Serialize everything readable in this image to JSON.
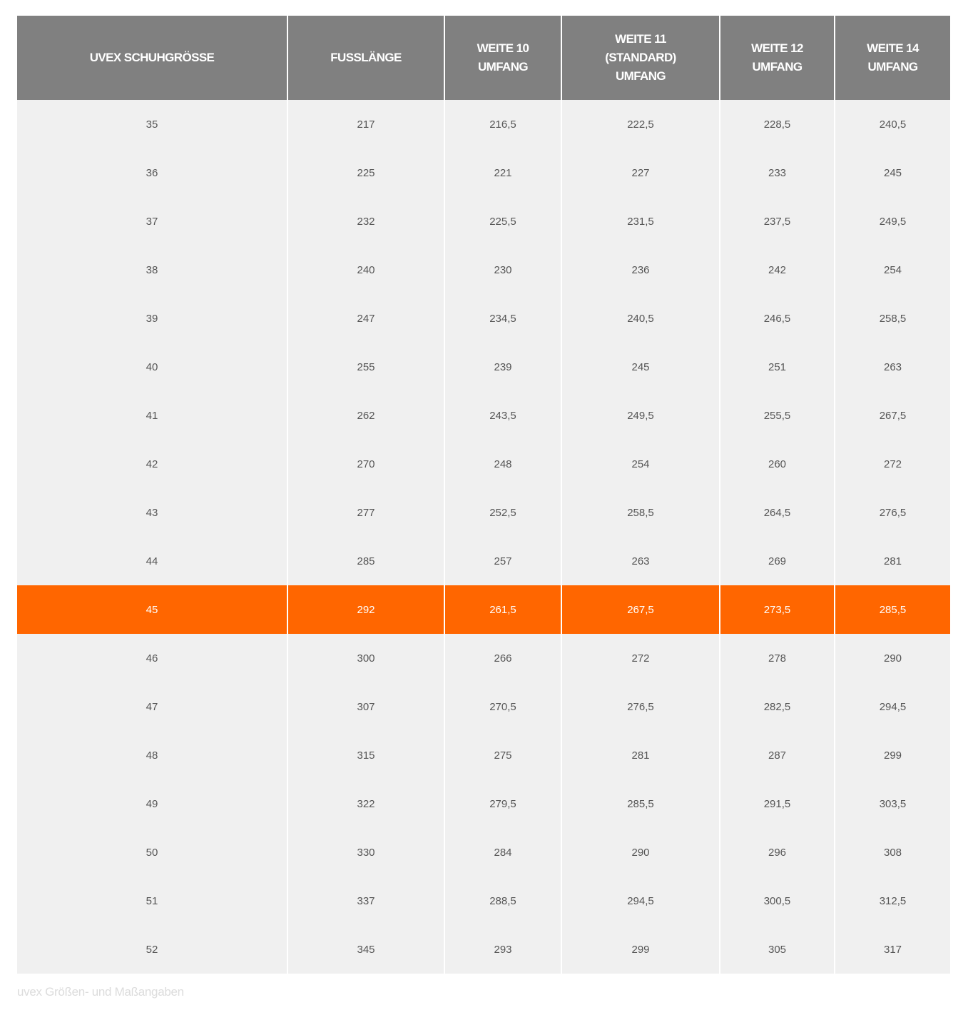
{
  "table": {
    "headers": [
      "UVEX SCHUHGRÖSSE",
      "FUSSLÄNGE",
      "WEITE 10 UMFANG",
      "WEITE 11 (STANDARD) UMFANG",
      "WEITE 12 UMFANG",
      "WEITE 14 UMFANG"
    ],
    "highlight_row": "45",
    "highlight_color": "#ff6600",
    "header_color": "#808080",
    "rows": [
      [
        "35",
        "217",
        "216,5",
        "222,5",
        "228,5",
        "240,5"
      ],
      [
        "36",
        "225",
        "221",
        "227",
        "233",
        "245"
      ],
      [
        "37",
        "232",
        "225,5",
        "231,5",
        "237,5",
        "249,5"
      ],
      [
        "38",
        "240",
        "230",
        "236",
        "242",
        "254"
      ],
      [
        "39",
        "247",
        "234,5",
        "240,5",
        "246,5",
        "258,5"
      ],
      [
        "40",
        "255",
        "239",
        "245",
        "251",
        "263"
      ],
      [
        "41",
        "262",
        "243,5",
        "249,5",
        "255,5",
        "267,5"
      ],
      [
        "42",
        "270",
        "248",
        "254",
        "260",
        "272"
      ],
      [
        "43",
        "277",
        "252,5",
        "258,5",
        "264,5",
        "276,5"
      ],
      [
        "44",
        "285",
        "257",
        "263",
        "269",
        "281"
      ],
      [
        "45",
        "292",
        "261,5",
        "267,5",
        "273,5",
        "285,5"
      ],
      [
        "46",
        "300",
        "266",
        "272",
        "278",
        "290"
      ],
      [
        "47",
        "307",
        "270,5",
        "276,5",
        "282,5",
        "294,5"
      ],
      [
        "48",
        "315",
        "275",
        "281",
        "287",
        "299"
      ],
      [
        "49",
        "322",
        "279,5",
        "285,5",
        "291,5",
        "303,5"
      ],
      [
        "50",
        "330",
        "284",
        "290",
        "296",
        "308"
      ],
      [
        "51",
        "337",
        "288,5",
        "294,5",
        "300,5",
        "312,5"
      ],
      [
        "52",
        "345",
        "293",
        "299",
        "305",
        "317"
      ]
    ]
  },
  "caption": "uvex Größen- und Maßangaben"
}
